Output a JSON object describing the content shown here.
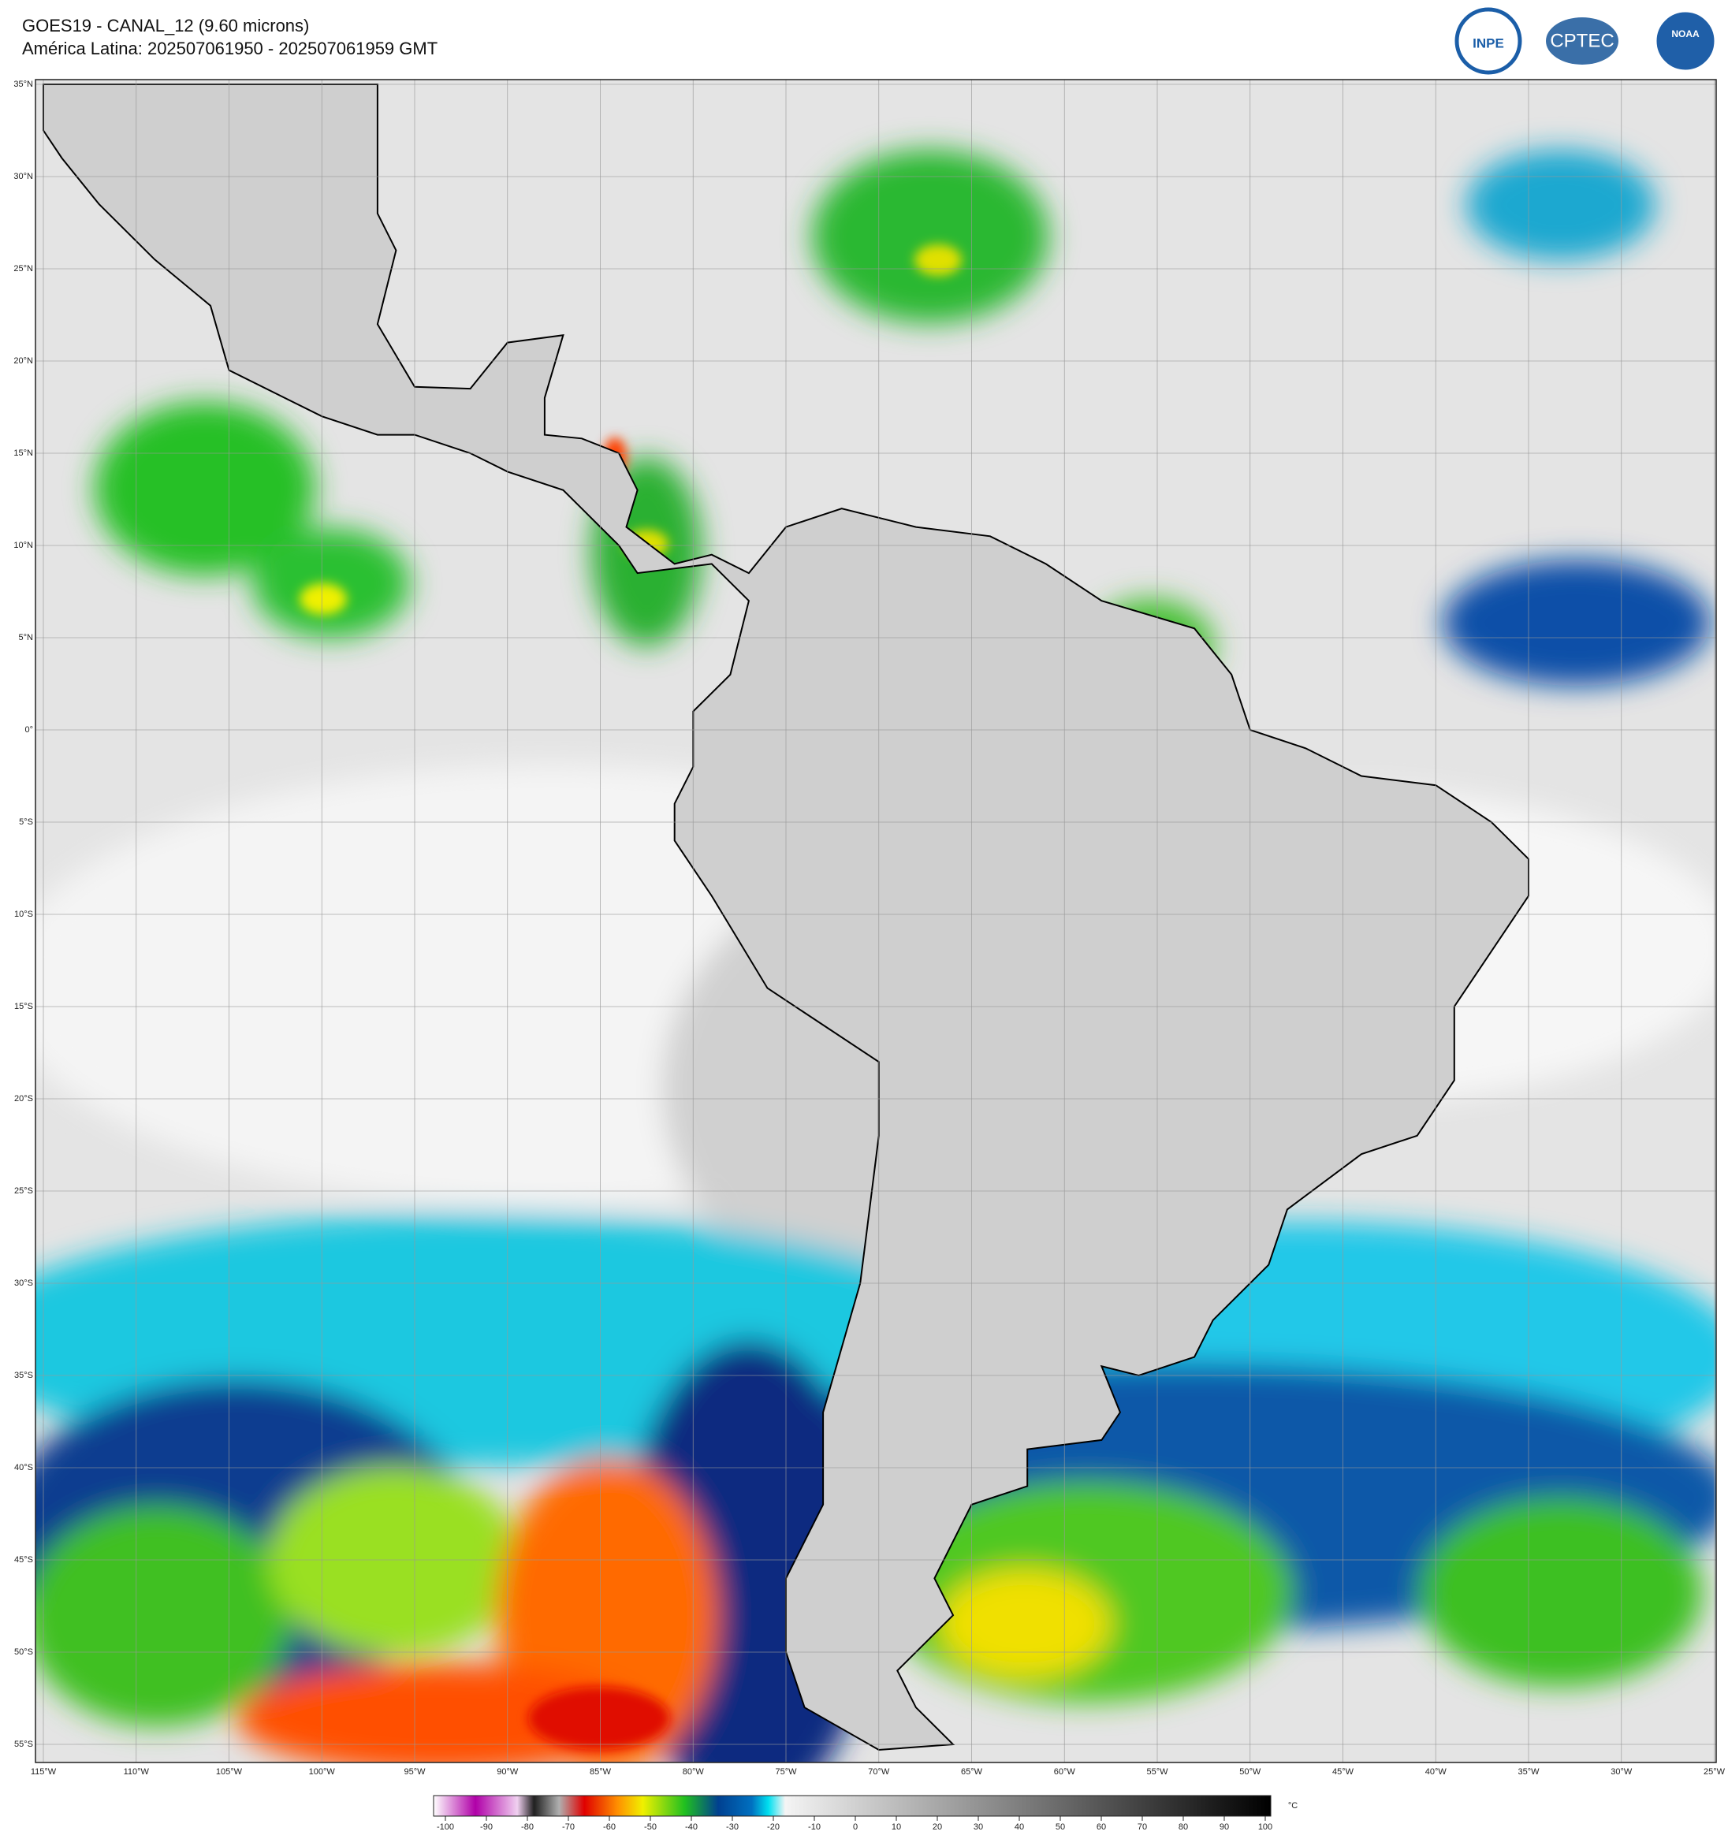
{
  "header": {
    "title": "GOES19 - CANAL_12 (9.60 microns)",
    "subtitle": "América Latina: 202507061950 - 202507061959 GMT"
  },
  "logos": [
    "INPE",
    "CPTEC",
    "NOAA"
  ],
  "map": {
    "lat_labels": [
      {
        "value": 35,
        "label": "35°N"
      },
      {
        "value": 30,
        "label": "30°N"
      },
      {
        "value": 25,
        "label": "25°N"
      },
      {
        "value": 20,
        "label": "20°N"
      },
      {
        "value": 15,
        "label": "15°N"
      },
      {
        "value": 10,
        "label": "10°N"
      },
      {
        "value": 5,
        "label": "5°N"
      },
      {
        "value": 0,
        "label": "0°"
      },
      {
        "value": -5,
        "label": "5°S"
      },
      {
        "value": -10,
        "label": "10°S"
      },
      {
        "value": -15,
        "label": "15°S"
      },
      {
        "value": -20,
        "label": "20°S"
      },
      {
        "value": -25,
        "label": "25°S"
      },
      {
        "value": -30,
        "label": "30°S"
      },
      {
        "value": -35,
        "label": "35°S"
      },
      {
        "value": -40,
        "label": "40°S"
      },
      {
        "value": -45,
        "label": "45°S"
      },
      {
        "value": -50,
        "label": "50°S"
      },
      {
        "value": -55,
        "label": "55°S"
      }
    ],
    "lon_labels": [
      {
        "value": -115,
        "label": "115°W"
      },
      {
        "value": -110,
        "label": "110°W"
      },
      {
        "value": -105,
        "label": "105°W"
      },
      {
        "value": -100,
        "label": "100°W"
      },
      {
        "value": -95,
        "label": "95°W"
      },
      {
        "value": -90,
        "label": "90°W"
      },
      {
        "value": -85,
        "label": "85°W"
      },
      {
        "value": -80,
        "label": "80°W"
      },
      {
        "value": -75,
        "label": "75°W"
      },
      {
        "value": -70,
        "label": "70°W"
      },
      {
        "value": -65,
        "label": "65°W"
      },
      {
        "value": -60,
        "label": "60°W"
      },
      {
        "value": -55,
        "label": "55°W"
      },
      {
        "value": -50,
        "label": "50°W"
      },
      {
        "value": -45,
        "label": "45°W"
      },
      {
        "value": -40,
        "label": "40°W"
      },
      {
        "value": -35,
        "label": "35°W"
      },
      {
        "value": -30,
        "label": "30°W"
      },
      {
        "value": -25,
        "label": "25°W"
      }
    ]
  },
  "colorbar": {
    "ticks": [
      -100,
      -90,
      -80,
      -70,
      -60,
      -50,
      -40,
      -30,
      -20,
      -10,
      0,
      10,
      20,
      30,
      40,
      50,
      60,
      70,
      80,
      90,
      100
    ],
    "unit": "°C"
  }
}
